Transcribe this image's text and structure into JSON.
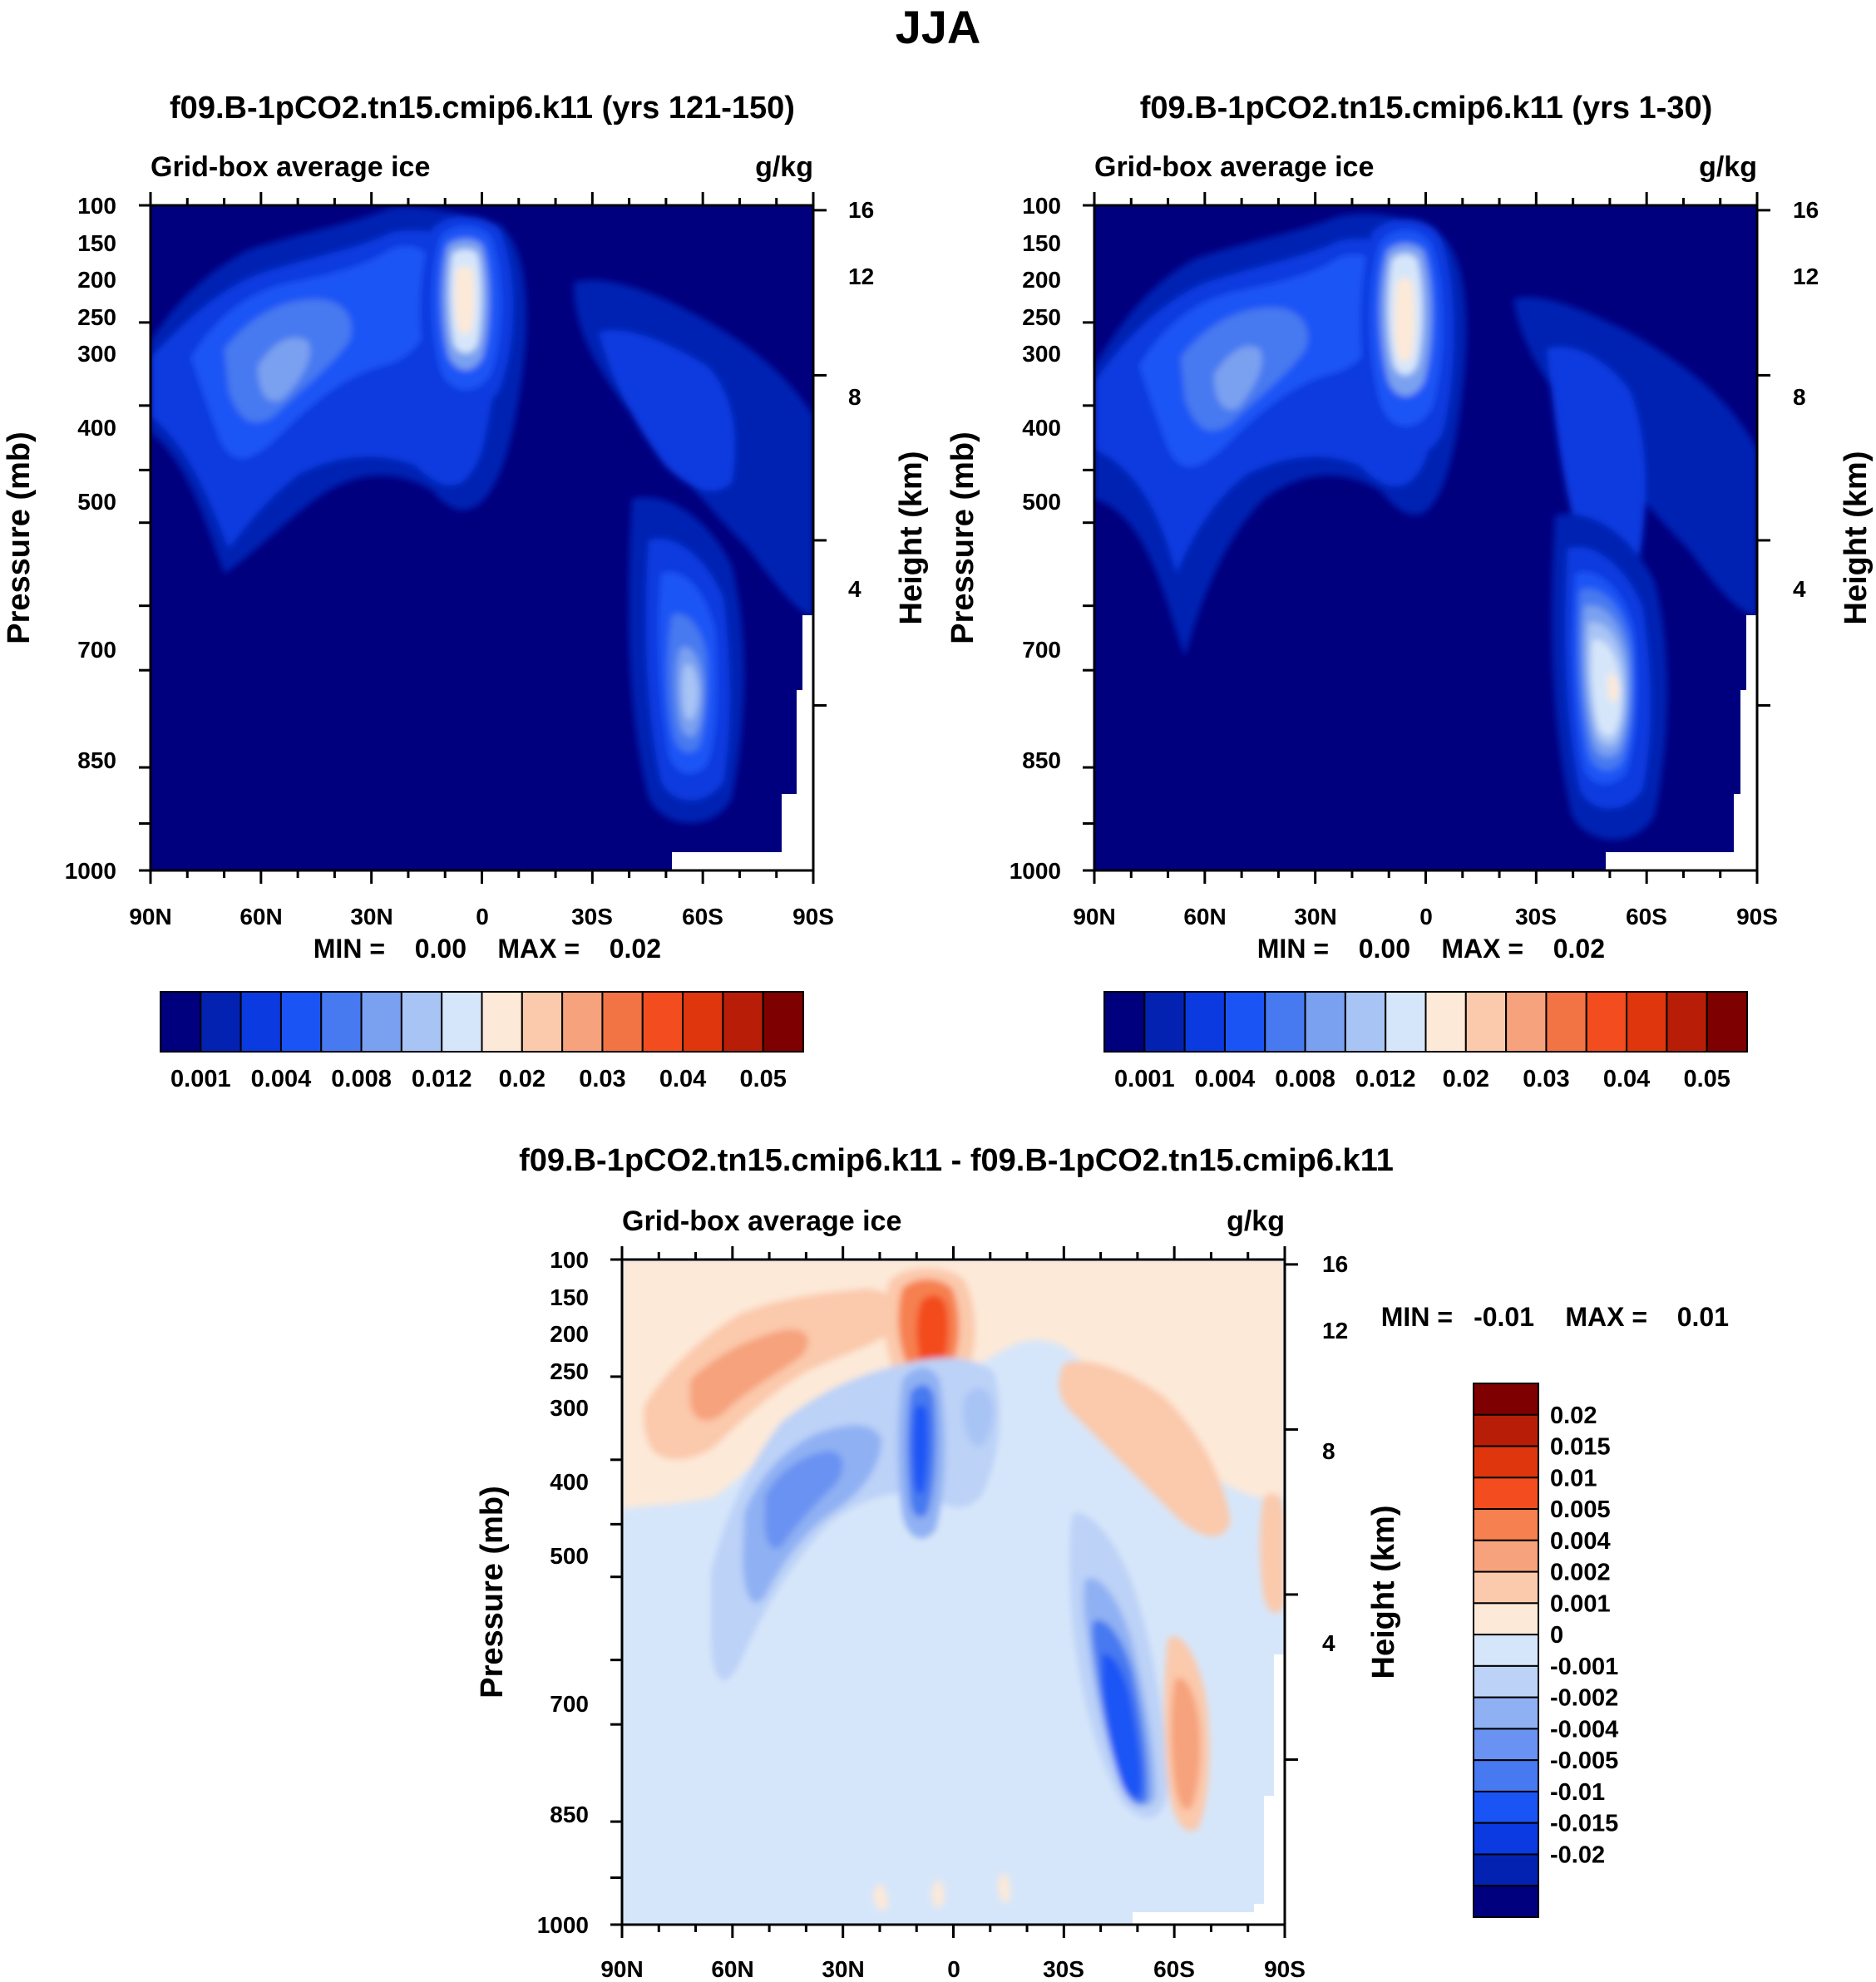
{
  "figure_title": "JJA",
  "chart_data": [
    {
      "type": "heatmap",
      "subtype": "filled-contour",
      "title": "f09.B-1pCO2.tn15.cmip6.k11 (yrs 121-150)",
      "left_string": "Grid-box average ice",
      "right_string": "g/kg",
      "ylabel": "Pressure (mb)",
      "ylabel_right": "Height (km)",
      "x_ticks": [
        "90N",
        "60N",
        "30N",
        "0",
        "30S",
        "60S",
        "90S"
      ],
      "x_range": [
        90,
        -90
      ],
      "y_ticks": [
        "100",
        "150",
        "200",
        "250",
        "300",
        "400",
        "500",
        "700",
        "850",
        "1000"
      ],
      "y_range": [
        100,
        1000
      ],
      "height_ticks": [
        "16",
        "12",
        "8",
        "4"
      ],
      "min_max": {
        "min_label": "MIN =",
        "min_value": "0.00",
        "max_label": "MAX =",
        "max_value": "0.02"
      },
      "colorbar": {
        "orientation": "horizontal",
        "colors": [
          "#00007f",
          "#0422b2",
          "#0a3ae0",
          "#1b54f5",
          "#4779f0",
          "#7aa0f0",
          "#a8c4f5",
          "#d6e6fa",
          "#fde9d8",
          "#fbc9ac",
          "#f6a27c",
          "#f27445",
          "#f34c1f",
          "#e0360d",
          "#b81e07",
          "#7f0000"
        ],
        "labels": [
          "0.001",
          "0.004",
          "0.008",
          "0.012",
          "0.02",
          "0.03",
          "0.04",
          "0.05"
        ]
      },
      "features": [
        {
          "name": "background",
          "level": 0
        },
        {
          "name": "nh-upper-cloud-band",
          "lat": 55,
          "pressure": 320,
          "peak_value": 0.008
        },
        {
          "name": "tropical-anvil",
          "lat": 8,
          "pressure": 230,
          "peak_value": 0.02
        },
        {
          "name": "sh-upper-cloud-band",
          "lat": -38,
          "pressure": 380,
          "peak_value": 0.004
        },
        {
          "name": "sh-low-level-mixed-phase",
          "lat": -55,
          "pressure": 750,
          "peak_value": 0.012
        }
      ]
    },
    {
      "type": "heatmap",
      "subtype": "filled-contour",
      "title": "f09.B-1pCO2.tn15.cmip6.k11 (yrs 1-30)",
      "left_string": "Grid-box average ice",
      "right_string": "g/kg",
      "ylabel": "Pressure (mb)",
      "ylabel_right": "Height (km)",
      "x_ticks": [
        "90N",
        "60N",
        "30N",
        "0",
        "30S",
        "60S",
        "90S"
      ],
      "x_range": [
        90,
        -90
      ],
      "y_ticks": [
        "100",
        "150",
        "200",
        "250",
        "300",
        "400",
        "500",
        "700",
        "850",
        "1000"
      ],
      "y_range": [
        100,
        1000
      ],
      "height_ticks": [
        "16",
        "12",
        "8",
        "4"
      ],
      "min_max": {
        "min_label": "MIN =",
        "min_value": "0.00",
        "max_label": "MAX =",
        "max_value": "0.02"
      },
      "colorbar": {
        "orientation": "horizontal",
        "colors": [
          "#00007f",
          "#0422b2",
          "#0a3ae0",
          "#1b54f5",
          "#4779f0",
          "#7aa0f0",
          "#a8c4f5",
          "#d6e6fa",
          "#fde9d8",
          "#fbc9ac",
          "#f6a27c",
          "#f27445",
          "#f34c1f",
          "#e0360d",
          "#b81e07",
          "#7f0000"
        ],
        "labels": [
          "0.001",
          "0.004",
          "0.008",
          "0.012",
          "0.02",
          "0.03",
          "0.04",
          "0.05"
        ]
      },
      "features": [
        {
          "name": "background",
          "level": 0
        },
        {
          "name": "nh-upper-cloud-band",
          "lat": 55,
          "pressure": 320,
          "peak_value": 0.008
        },
        {
          "name": "tropical-anvil",
          "lat": 8,
          "pressure": 230,
          "peak_value": 0.02
        },
        {
          "name": "sh-upper-cloud-band",
          "lat": -38,
          "pressure": 380,
          "peak_value": 0.004
        },
        {
          "name": "sh-low-level-mixed-phase",
          "lat": -52,
          "pressure": 770,
          "peak_value": 0.02
        }
      ]
    },
    {
      "type": "heatmap",
      "subtype": "filled-contour-difference",
      "title": "f09.B-1pCO2.tn15.cmip6.k11 - f09.B-1pCO2.tn15.cmip6.k11",
      "left_string": "Grid-box average ice",
      "right_string": "g/kg",
      "ylabel": "Pressure (mb)",
      "ylabel_right": "Height (km)",
      "x_ticks": [
        "90N",
        "60N",
        "30N",
        "0",
        "30S",
        "60S",
        "90S"
      ],
      "x_range": [
        90,
        -90
      ],
      "y_ticks": [
        "100",
        "150",
        "200",
        "250",
        "300",
        "400",
        "500",
        "700",
        "850",
        "1000"
      ],
      "y_range": [
        100,
        1000
      ],
      "height_ticks": [
        "16",
        "12",
        "8",
        "4"
      ],
      "min_max": {
        "min_label": "MIN =",
        "min_value": "-0.01",
        "max_label": "MAX =",
        "max_value": "0.01"
      },
      "colorbar": {
        "orientation": "vertical",
        "colors": [
          "#7f0000",
          "#b81e07",
          "#e0360d",
          "#f34c1f",
          "#f6804f",
          "#f6a27c",
          "#fbc9ac",
          "#fde9d8",
          "#d6e6fa",
          "#bcd2f7",
          "#8fb0f3",
          "#6a92f2",
          "#4779f0",
          "#1b54f5",
          "#0a3ae0",
          "#0422b2",
          "#00007f"
        ],
        "labels": [
          "0.02",
          "0.015",
          "0.01",
          "0.005",
          "0.004",
          "0.002",
          "0.001",
          "0",
          "-0.001",
          "-0.002",
          "-0.004",
          "-0.005",
          "-0.01",
          "-0.015",
          "-0.02"
        ]
      },
      "features": [
        {
          "name": "upper-level-increase-nh",
          "lat": 55,
          "pressure": 280,
          "value": 0.002
        },
        {
          "name": "tropical-anvil-increase",
          "lat": 5,
          "pressure": 200,
          "value": 0.005
        },
        {
          "name": "mid-level-decrease-nh",
          "lat": 45,
          "pressure": 420,
          "value": -0.002
        },
        {
          "name": "tropical-column-decrease",
          "lat": 10,
          "pressure": 350,
          "value": -0.005
        },
        {
          "name": "sh-upper-increase",
          "lat": -45,
          "pressure": 350,
          "value": 0.001
        },
        {
          "name": "sh-low-level-decrease",
          "lat": -52,
          "pressure": 760,
          "value": -0.005
        },
        {
          "name": "sh-low-level-increase",
          "lat": -63,
          "pressure": 790,
          "value": 0.004
        }
      ]
    }
  ]
}
